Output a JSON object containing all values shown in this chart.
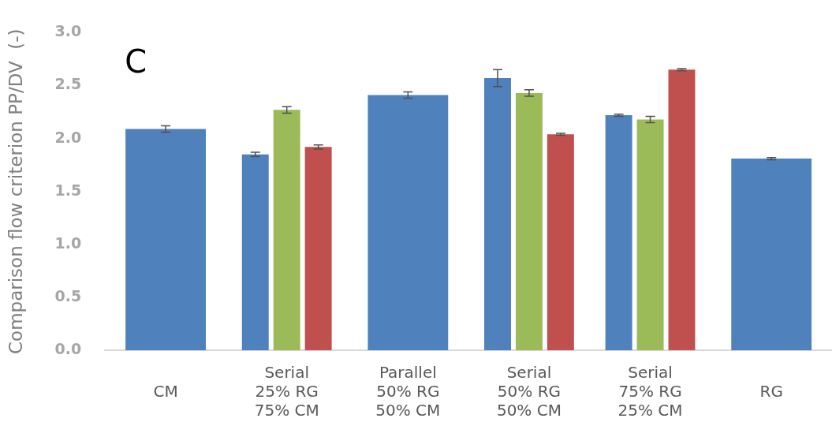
{
  "chart_data": {
    "type": "bar",
    "ylabel": "Comparison flow criterion PP/DV  (-)",
    "annotations": [
      "C"
    ],
    "categories": [
      "CM",
      "Serial\n25% RG\n75% CM",
      "Parallel\n50% RG\n50% CM",
      "Serial\n50% RG\n50% CM",
      "Serial\n75% RG\n25% CM",
      "RG"
    ],
    "series": [
      {
        "color": "#4f81bd",
        "values": [
          2.09,
          1.85,
          2.41,
          2.57,
          2.22,
          1.81
        ],
        "errors": [
          0.03,
          0.02,
          0.03,
          0.08,
          0.01,
          0.01
        ]
      },
      {
        "color": "#9bbb59",
        "values": [
          null,
          2.27,
          null,
          2.43,
          2.18,
          null
        ],
        "errors": [
          null,
          0.03,
          null,
          0.03,
          0.03,
          null
        ]
      },
      {
        "color": "#c0504d",
        "values": [
          null,
          1.92,
          null,
          2.04,
          2.65,
          null
        ],
        "errors": [
          null,
          0.02,
          null,
          0.01,
          0.01,
          null
        ]
      }
    ],
    "ylim": [
      0,
      3.0
    ],
    "yticks": [
      {
        "value": 0,
        "label": "0.0"
      },
      {
        "value": 0.5,
        "label": "0.5"
      },
      {
        "value": 1,
        "label": "1.0"
      },
      {
        "value": 1.5,
        "label": "1.5"
      },
      {
        "value": 2,
        "label": "2.0"
      },
      {
        "value": 2.5,
        "label": "2.5"
      },
      {
        "value": 3,
        "label": "3.0"
      }
    ],
    "grid": false,
    "legend": false
  }
}
